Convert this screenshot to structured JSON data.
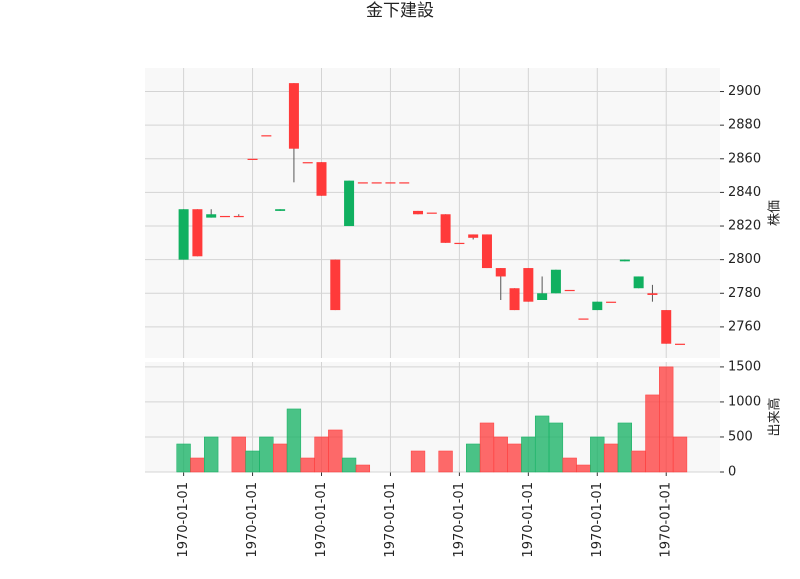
{
  "chart_data": {
    "type": "candlestick",
    "title": "金下建設",
    "categories": [
      "1970-01-01",
      null,
      null,
      null,
      null,
      "1970-01-01",
      null,
      null,
      null,
      null,
      "1970-01-01",
      null,
      null,
      null,
      null,
      "1970-01-01",
      null,
      null,
      null,
      null,
      "1970-01-01",
      null,
      null,
      null,
      null,
      "1970-01-01",
      null,
      null,
      null,
      null,
      "1970-01-01",
      null,
      null,
      null,
      null,
      "1970-01-01",
      null
    ],
    "open": [
      2800,
      2830,
      2825,
      2826,
      2826,
      2860,
      2874,
      2829,
      2905,
      2858,
      2858,
      2800,
      2820,
      2846,
      2846,
      2846,
      2846,
      2829,
      2828,
      2827,
      2810,
      2815,
      2815,
      2795,
      2783,
      2795,
      2776,
      2780,
      2782,
      2765,
      2770,
      2775,
      2799,
      2783,
      2780,
      2770,
      2750
    ],
    "high": [
      2830,
      2830,
      2830,
      2826,
      2827,
      2860,
      2874,
      2830,
      2905,
      2858,
      2858,
      2800,
      2847,
      2846,
      2846,
      2846,
      2846,
      2829,
      2828,
      2827,
      2810,
      2815,
      2815,
      2795,
      2783,
      2795,
      2790,
      2794,
      2782,
      2765,
      2775,
      2775,
      2800,
      2790,
      2785,
      2770,
      2750
    ],
    "low": [
      2800,
      2802,
      2825,
      2826,
      2826,
      2860,
      2874,
      2829,
      2846,
      2858,
      2838,
      2770,
      2820,
      2846,
      2846,
      2846,
      2846,
      2827,
      2828,
      2810,
      2810,
      2812,
      2795,
      2776,
      2770,
      2775,
      2776,
      2780,
      2782,
      2765,
      2770,
      2775,
      2799,
      2783,
      2775,
      2750,
      2750
    ],
    "close": [
      2830,
      2802,
      2827,
      2826,
      2826,
      2860,
      2874,
      2830,
      2866,
      2858,
      2838,
      2770,
      2847,
      2846,
      2846,
      2846,
      2846,
      2827,
      2828,
      2810,
      2810,
      2813,
      2795,
      2790,
      2770,
      2775,
      2780,
      2794,
      2782,
      2765,
      2775,
      2775,
      2800,
      2790,
      2779,
      2750,
      2750
    ],
    "volume": [
      400,
      200,
      500,
      0,
      500,
      300,
      500,
      400,
      900,
      200,
      500,
      600,
      200,
      100,
      0,
      0,
      0,
      300,
      0,
      300,
      0,
      400,
      700,
      500,
      400,
      500,
      800,
      700,
      200,
      100,
      500,
      400,
      700,
      300,
      1100,
      1500,
      500
    ],
    "ylabel": "株価",
    "volume_label": "出来高",
    "ylim": [
      2741.5,
      2914
    ],
    "yticks": [
      2760,
      2780,
      2800,
      2820,
      2840,
      2860,
      2880,
      2900
    ],
    "volume_lim": [
      0,
      1570
    ],
    "volume_ticks": [
      0,
      500,
      1000,
      1500
    ],
    "up_color": "#10b060",
    "down_color": "#ff3a3a",
    "grid": true
  }
}
